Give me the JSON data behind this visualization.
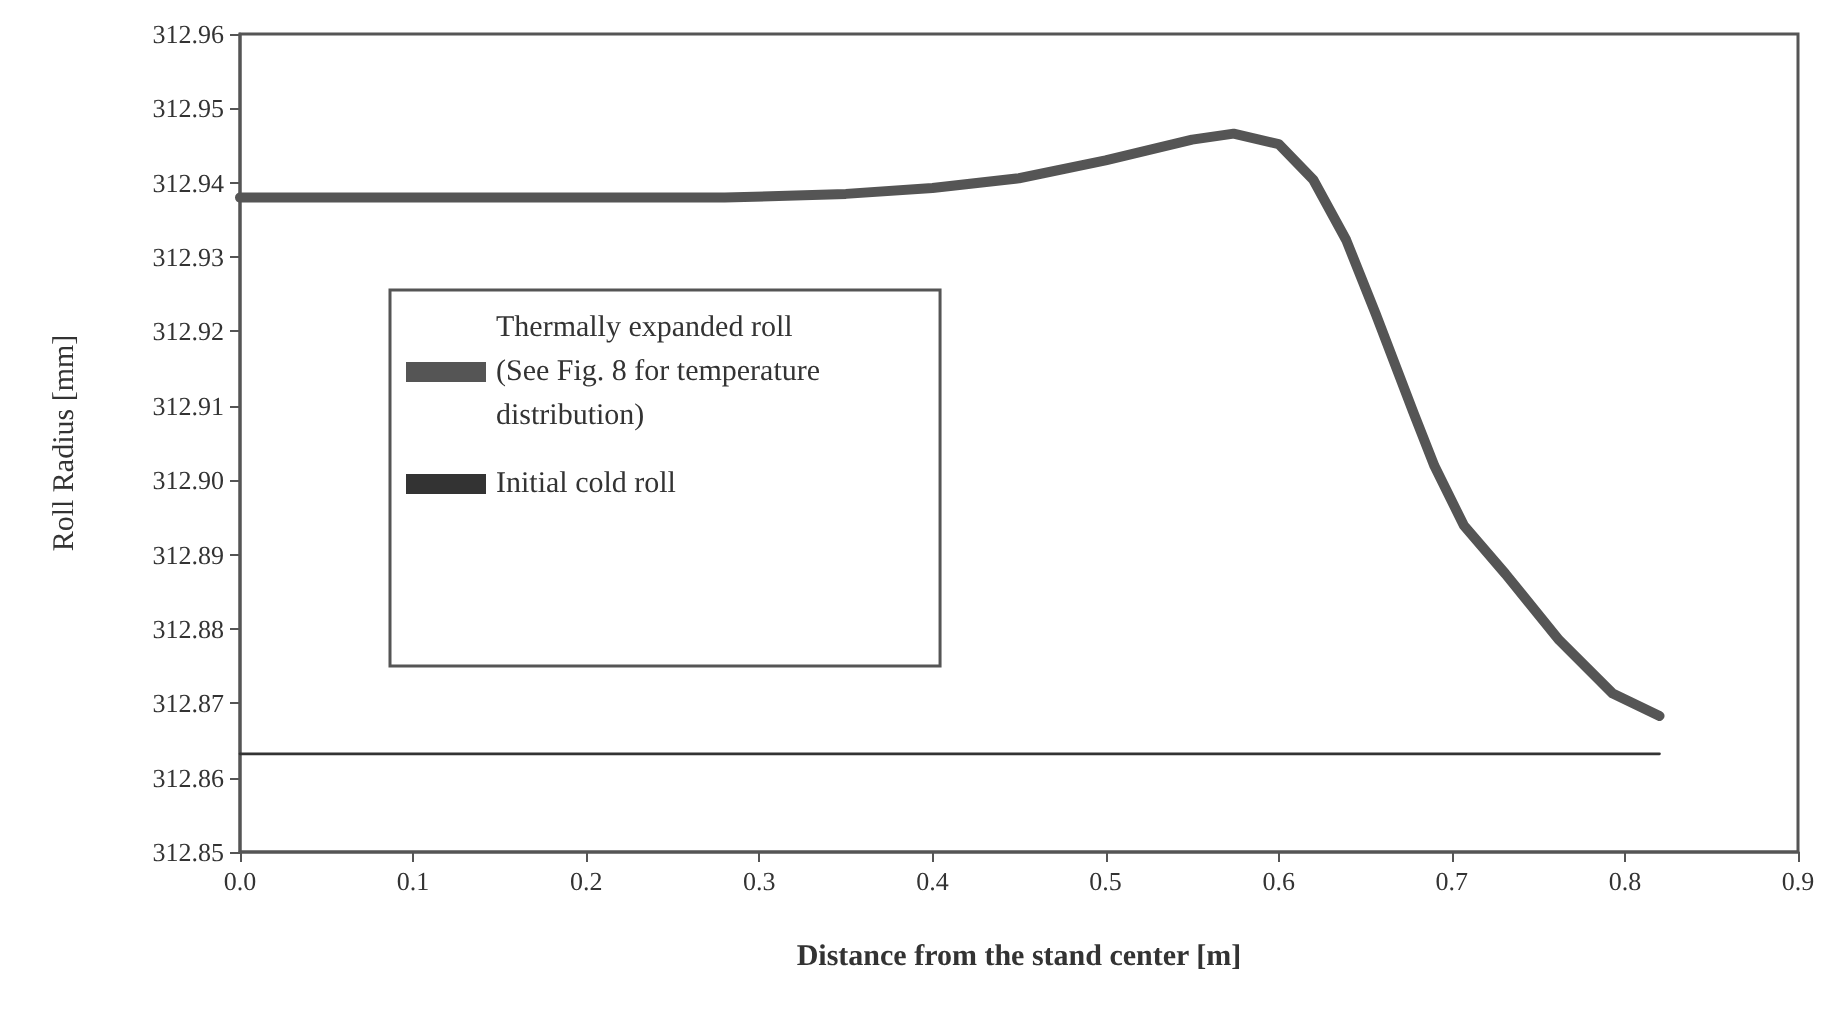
{
  "chart_data": {
    "type": "line",
    "xlabel": "Distance from the stand center [m]",
    "ylabel": "Roll Radius [mm]",
    "xlim": [
      0,
      0.9
    ],
    "xticks": [
      {
        "value": 0,
        "label": "0.0"
      },
      0.1,
      0.2,
      0.3,
      0.4,
      0.5,
      0.6,
      0.7,
      0.8,
      0.9
    ],
    "ylim": [
      312.85,
      312.96
    ],
    "yticks": [
      {
        "value": 312.85,
        "label": "312.85"
      },
      {
        "value": 312.86,
        "label": "312.86"
      },
      {
        "value": 312.87,
        "label": "312.87"
      },
      {
        "value": 312.88,
        "label": "312.88"
      },
      {
        "value": 312.89,
        "label": "312.89"
      },
      {
        "value": 312.9,
        "label": "312.90"
      },
      {
        "value": 312.91,
        "label": "312.91"
      },
      {
        "value": 312.92,
        "label": "312.92"
      },
      {
        "value": 312.93,
        "label": "312.93"
      },
      {
        "value": 312.94,
        "label": "312.94"
      },
      {
        "value": 312.95,
        "label": "312.95"
      },
      {
        "value": 312.96,
        "label": "312.96"
      }
    ],
    "grid": false,
    "legend": "left",
    "marker": "none",
    "line_style": "solid",
    "series": [
      {
        "name": "Thermally expanded roll\n(See Fig. 8 for temperature\ndistribution)",
        "color": "#555555",
        "x": [
          0,
          0.1,
          0.2,
          0.28,
          0.35,
          0.4,
          0.45,
          0.5,
          0.55,
          0.574,
          0.6,
          0.62,
          0.639,
          0.656,
          0.678,
          0.69,
          0.707,
          0.731,
          0.762,
          0.793,
          0.82
        ],
        "values": [
          312.938,
          312.938,
          312.938,
          312.938,
          312.9385,
          312.9393,
          312.9406,
          312.943,
          312.9458,
          312.9466,
          312.9452,
          312.9404,
          312.9323,
          312.9224,
          312.909,
          312.9019,
          312.8939,
          312.8874,
          312.8785,
          312.8713,
          312.8683
        ]
      },
      {
        "name": "Initial cold roll",
        "color": "#333333",
        "x": [
          0,
          0.82
        ],
        "values": [
          312.8632,
          312.8632
        ]
      }
    ]
  }
}
